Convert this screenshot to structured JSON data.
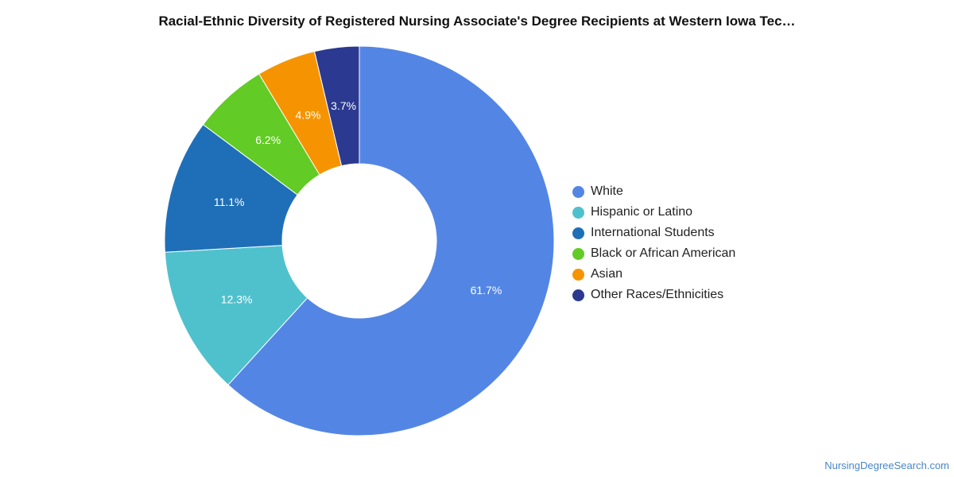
{
  "chart_data": {
    "type": "pie",
    "title": "Racial-Ethnic Diversity of Registered Nursing Associate's Degree Recipients at Western Iowa Tec…",
    "donut": true,
    "legend_position": "right",
    "slices": [
      {
        "label": "White",
        "value": 61.7,
        "value_label": "61.7%",
        "color": "#5386e4"
      },
      {
        "label": "Hispanic or Latino",
        "value": 12.3,
        "value_label": "12.3%",
        "color": "#4fc1cd"
      },
      {
        "label": "International Students",
        "value": 11.1,
        "value_label": "11.1%",
        "color": "#1f6fb8"
      },
      {
        "label": "Black or African American",
        "value": 6.2,
        "value_label": "6.2%",
        "color": "#62cb26"
      },
      {
        "label": "Asian",
        "value": 4.9,
        "value_label": "4.9%",
        "color": "#f59400"
      },
      {
        "label": "Other Races/Ethnicities",
        "value": 3.7,
        "value_label": "3.7%",
        "color": "#2b3990"
      }
    ]
  },
  "watermark": "NursingDegreeSearch.com"
}
